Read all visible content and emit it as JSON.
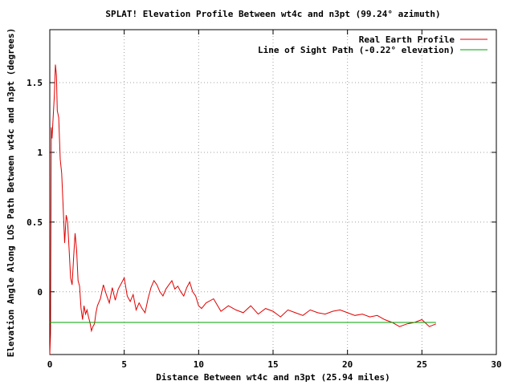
{
  "chart_data": {
    "type": "line",
    "title": "SPLAT! Elevation Profile Between wt4c and n3pt (99.24° azimuth)",
    "xlabel": "Distance Between wt4c and n3pt (25.94 miles)",
    "ylabel": "Elevation Angle Along LOS Path Between wt4c and n3pt (degrees)",
    "xlim": [
      0,
      30
    ],
    "ylim": [
      -0.45,
      1.88
    ],
    "x_ticks": [
      0,
      5,
      10,
      15,
      20,
      25,
      30
    ],
    "x_tick_labels": [
      "0",
      "5",
      "10",
      "15",
      "20",
      "25",
      "30"
    ],
    "y_ticks": [
      0,
      0.5,
      1,
      1.5
    ],
    "y_tick_labels": [
      "0",
      "0.5",
      "1",
      "1.5"
    ],
    "grid": true,
    "legend_position": "top-right",
    "series": [
      {
        "name": "Real Earth Profile",
        "color": "#e00000",
        "x": [
          0.0,
          0.05,
          0.1,
          0.15,
          0.2,
          0.3,
          0.38,
          0.45,
          0.5,
          0.6,
          0.7,
          0.8,
          0.9,
          1.0,
          1.1,
          1.2,
          1.3,
          1.4,
          1.5,
          1.6,
          1.7,
          1.8,
          1.9,
          2.0,
          2.1,
          2.2,
          2.3,
          2.4,
          2.5,
          2.6,
          2.7,
          2.8,
          2.9,
          3.0,
          3.1,
          3.2,
          3.4,
          3.6,
          3.8,
          4.0,
          4.2,
          4.4,
          4.6,
          4.8,
          5.0,
          5.2,
          5.4,
          5.6,
          5.8,
          6.0,
          6.2,
          6.4,
          6.6,
          6.8,
          7.0,
          7.2,
          7.4,
          7.6,
          7.8,
          8.0,
          8.2,
          8.4,
          8.6,
          8.8,
          9.0,
          9.2,
          9.4,
          9.6,
          9.8,
          10.0,
          10.2,
          10.5,
          11.0,
          11.5,
          12.0,
          12.5,
          13.0,
          13.5,
          14.0,
          14.5,
          15.0,
          15.5,
          16.0,
          16.5,
          17.0,
          17.5,
          18.0,
          18.5,
          19.0,
          19.5,
          20.0,
          20.5,
          21.0,
          21.5,
          22.0,
          22.5,
          23.0,
          23.5,
          24.0,
          24.5,
          25.0,
          25.5,
          25.94
        ],
        "y": [
          -0.45,
          -0.3,
          1.18,
          1.1,
          1.2,
          1.4,
          1.63,
          1.55,
          1.3,
          1.25,
          0.95,
          0.85,
          0.6,
          0.35,
          0.55,
          0.5,
          0.3,
          0.1,
          0.05,
          0.25,
          0.42,
          0.3,
          0.08,
          0.04,
          -0.12,
          -0.2,
          -0.1,
          -0.16,
          -0.13,
          -0.18,
          -0.22,
          -0.28,
          -0.25,
          -0.23,
          -0.15,
          -0.1,
          -0.05,
          0.05,
          -0.02,
          -0.08,
          0.03,
          -0.06,
          0.02,
          0.06,
          0.1,
          -0.03,
          -0.07,
          -0.02,
          -0.13,
          -0.08,
          -0.12,
          -0.15,
          -0.05,
          0.03,
          0.08,
          0.05,
          0.0,
          -0.03,
          0.02,
          0.05,
          0.08,
          0.02,
          0.04,
          0.0,
          -0.03,
          0.03,
          0.07,
          0.0,
          -0.03,
          -0.1,
          -0.12,
          -0.08,
          -0.05,
          -0.14,
          -0.1,
          -0.13,
          -0.15,
          -0.1,
          -0.16,
          -0.12,
          -0.14,
          -0.18,
          -0.13,
          -0.15,
          -0.17,
          -0.13,
          -0.15,
          -0.16,
          -0.14,
          -0.13,
          -0.15,
          -0.17,
          -0.16,
          -0.18,
          -0.17,
          -0.2,
          -0.22,
          -0.25,
          -0.23,
          -0.22,
          -0.2,
          -0.25,
          -0.23
        ]
      },
      {
        "name": "Line of Sight Path (-0.22° elevation)",
        "color": "#00a000",
        "x": [
          0,
          25.94
        ],
        "y": [
          -0.22,
          -0.22
        ]
      }
    ]
  }
}
